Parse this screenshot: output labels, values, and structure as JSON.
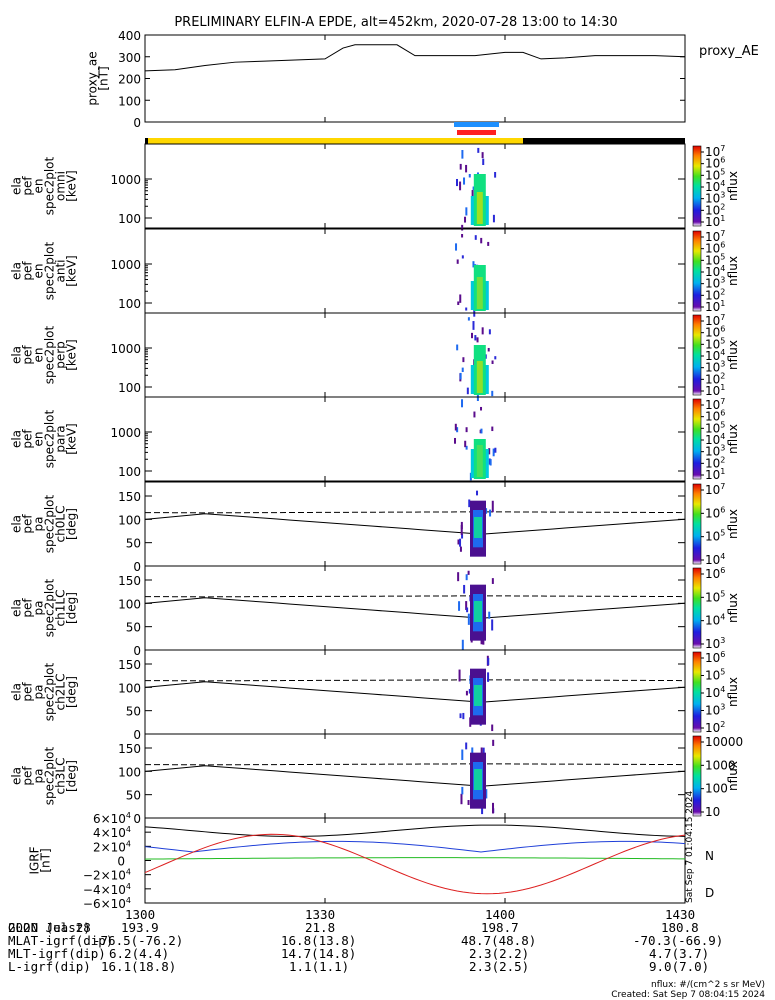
{
  "title": "PRELIMINARY ELFIN-A EPDE, alt=452km, 2020-07-28 13:00 to 14:30",
  "colors": {
    "axis": "#000000",
    "proximity_bar": "#ffd700",
    "science_zone_blue": "#1e90ff",
    "science_zone_red": "#ff2020",
    "bfield_black": "#000000",
    "bfield_blue": "#1f3fd8",
    "bfield_green": "#22bb22",
    "bfield_red": "#dd2020"
  },
  "chart_data": [
    {
      "type": "line",
      "panel": "proxy_ae",
      "ylabel": [
        "proxy_ae",
        "[nT]"
      ],
      "legend": "proxy_AE",
      "ylim": [
        0,
        400
      ],
      "yticks": [
        "400",
        "300",
        "200",
        "100",
        "0"
      ],
      "ytick_values": [
        400,
        300,
        200,
        100,
        0
      ],
      "x_minutes": [
        0,
        5,
        10,
        15,
        20,
        25,
        30,
        33,
        35,
        38,
        42,
        45,
        55,
        60,
        63,
        66,
        70,
        75,
        80,
        85,
        90
      ],
      "values": [
        235,
        240,
        260,
        275,
        280,
        285,
        290,
        340,
        355,
        355,
        355,
        305,
        305,
        320,
        320,
        290,
        295,
        305,
        305,
        305,
        300
      ]
    },
    {
      "type": "heatmap",
      "panel": "spec2plot_omni",
      "ylabel": [
        "ela",
        "pef",
        "en",
        "spec2plot",
        "omni",
        "[keV]"
      ],
      "yticks": [
        "1000",
        "100"
      ],
      "log_y": true,
      "colorbar": {
        "label": "nflux",
        "ticks": [
          "10^7",
          "10^6",
          "10^5",
          "10^4",
          "10^3",
          "10^2",
          "10^1"
        ]
      }
    },
    {
      "type": "heatmap",
      "panel": "spec2plot_anti",
      "ylabel": [
        "ela",
        "pef",
        "en",
        "spec2plot",
        "anti",
        "[keV]"
      ],
      "yticks": [
        "1000",
        "100"
      ],
      "log_y": true,
      "colorbar": {
        "label": "nflux",
        "ticks": [
          "10^7",
          "10^6",
          "10^5",
          "10^4",
          "10^3",
          "10^2",
          "10^1"
        ]
      }
    },
    {
      "type": "heatmap",
      "panel": "spec2plot_perp",
      "ylabel": [
        "ela",
        "pef",
        "en",
        "spec2plot",
        "perp",
        "[keV]"
      ],
      "yticks": [
        "1000",
        "100"
      ],
      "log_y": true,
      "colorbar": {
        "label": "nflux",
        "ticks": [
          "10^7",
          "10^6",
          "10^5",
          "10^4",
          "10^3",
          "10^2",
          "10^1"
        ]
      }
    },
    {
      "type": "heatmap",
      "panel": "spec2plot_para",
      "ylabel": [
        "ela",
        "pef",
        "en",
        "spec2plot",
        "para",
        "[keV]"
      ],
      "yticks": [
        "1000",
        "100"
      ],
      "log_y": true,
      "colorbar": {
        "label": "nflux",
        "ticks": [
          "10^7",
          "10^6",
          "10^5",
          "10^4",
          "10^3",
          "10^2",
          "10^1"
        ]
      }
    },
    {
      "type": "heatmap",
      "panel": "spec2plot_ch0LC",
      "ylabel": [
        "ela",
        "pef",
        "pa",
        "spec2plot",
        "ch0LC",
        "[deg]"
      ],
      "yticks": [
        "150",
        "100",
        "50",
        "0"
      ],
      "ylim": [
        0,
        180
      ],
      "colorbar": {
        "label": "nflux",
        "ticks": [
          "10^7",
          "10^6",
          "10^5",
          "10^4"
        ]
      }
    },
    {
      "type": "heatmap",
      "panel": "spec2plot_ch1LC",
      "ylabel": [
        "ela",
        "pef",
        "pa",
        "spec2plot",
        "ch1LC",
        "[deg]"
      ],
      "yticks": [
        "150",
        "100",
        "50",
        "0"
      ],
      "ylim": [
        0,
        180
      ],
      "colorbar": {
        "label": "nflux",
        "ticks": [
          "10^6",
          "10^5",
          "10^4",
          "10^3"
        ]
      }
    },
    {
      "type": "heatmap",
      "panel": "spec2plot_ch2LC",
      "ylabel": [
        "ela",
        "pef",
        "pa",
        "spec2plot",
        "ch2LC",
        "[deg]"
      ],
      "yticks": [
        "150",
        "100",
        "50",
        "0"
      ],
      "ylim": [
        0,
        180
      ],
      "colorbar": {
        "label": "nflux",
        "ticks": [
          "10^6",
          "10^5",
          "10^4",
          "10^3",
          "10^2"
        ]
      }
    },
    {
      "type": "heatmap",
      "panel": "spec2plot_ch3LC",
      "ylabel": [
        "ela",
        "pef",
        "pa",
        "spec2plot",
        "ch3LC",
        "[deg]"
      ],
      "yticks": [
        "150",
        "100",
        "50",
        "0"
      ],
      "ylim": [
        0,
        180
      ],
      "colorbar": {
        "label": "nflux",
        "ticks": [
          "10000",
          "1000",
          "100",
          "10"
        ]
      }
    },
    {
      "type": "line",
      "panel": "IGRF",
      "ylabel": [
        "IGRF",
        "[nT]"
      ],
      "ylim": [
        -60000,
        60000
      ],
      "yticks": [
        "6×10^4",
        "4×10^4",
        "2×10^4",
        "0",
        "−2×10^4",
        "−4×10^4",
        "−6×10^4"
      ],
      "ytick_values": [
        60000,
        40000,
        20000,
        0,
        -20000,
        -40000,
        -60000
      ],
      "side_labels": [
        "N",
        "D"
      ],
      "stamp": "Sat Sep  7 01:04:15 2024"
    }
  ],
  "xaxis": {
    "date": "2020 Jul 28",
    "ticks": [
      "1300",
      "1330",
      "1400",
      "1430"
    ],
    "tick_minutes": [
      0,
      30,
      60,
      90
    ],
    "rows": [
      {
        "label": "GLON (east)",
        "values": [
          "193.9",
          "21.8",
          "198.7",
          "180.8"
        ]
      },
      {
        "label": "MLAT-igrf(dip)",
        "values": [
          "-76.5(-76.2)",
          "16.8(13.8)",
          "48.7(48.8)",
          "-70.3(-66.9)"
        ]
      },
      {
        "label": "MLT-igrf(dip)",
        "values": [
          "6.2(4.4)",
          "14.7(14.8)",
          "2.3(2.2)",
          "4.7(3.7)"
        ]
      },
      {
        "label": "L-igrf(dip)",
        "values": [
          "16.1(18.8)",
          "1.1(1.1)",
          "2.3(2.5)",
          "9.0(7.0)"
        ]
      }
    ]
  },
  "footer": {
    "units": "nflux: #/(cm^2 s sr MeV)",
    "created": "Created: Sat Sep  7 08:04:15 2024"
  }
}
